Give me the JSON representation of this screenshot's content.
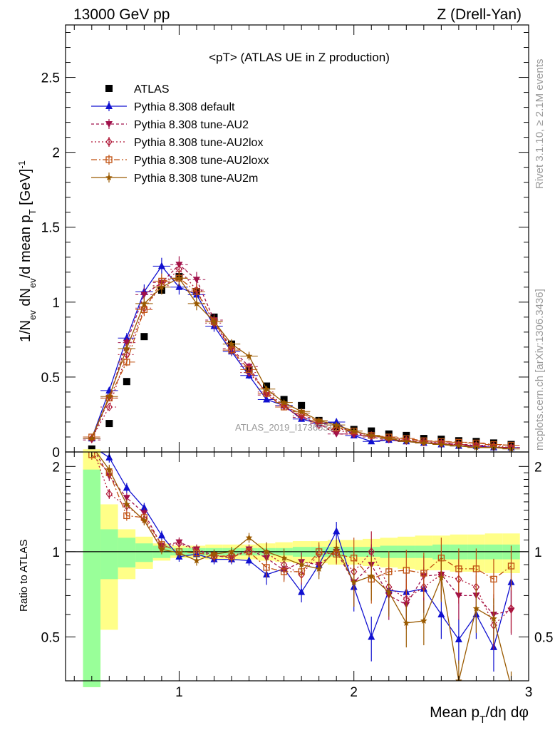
{
  "header": {
    "left": "13000 GeV pp",
    "right": "Z (Drell-Yan)"
  },
  "side": {
    "rivet": "Rivet 3.1.10, ≥ 2.1M events",
    "mcplots": "mcplots.cern.ch [arXiv:1306.3436]"
  },
  "watermark": "ATLAS_2019_I1736531",
  "colors": {
    "data": "#000000",
    "default": "#1010d0",
    "au2": "#a0104a",
    "au2lox": "#b01838",
    "au2loxx": "#c05010",
    "au2m": "#9a5a00",
    "band_green": "#99ff99",
    "band_yellow": "#ffff88"
  },
  "chart_data": [
    {
      "type": "scatter",
      "panel": "main",
      "title": "<pT> (ATLAS UE in Z production)",
      "ylabel": "1/N_ev dN_ev/d mean p_T [GeV]^-1",
      "xlim": [
        0.35,
        3.0
      ],
      "ylim": [
        0,
        2.85
      ],
      "yticks": [
        0,
        0.5,
        1,
        1.5,
        2,
        2.5
      ],
      "ytick_labels": [
        "0",
        "0.5",
        "1",
        "1.5",
        "2",
        "2.5"
      ],
      "x": [
        0.5,
        0.6,
        0.7,
        0.8,
        0.9,
        1.0,
        1.1,
        1.2,
        1.3,
        1.4,
        1.5,
        1.6,
        1.7,
        1.8,
        1.9,
        2.0,
        2.1,
        2.2,
        2.3,
        2.4,
        2.5,
        2.6,
        2.7,
        2.8,
        2.9
      ],
      "legend_position": "top-left",
      "series": [
        {
          "name": "ATLAS",
          "key": "data",
          "marker": "square",
          "values": [
            0.02,
            0.19,
            0.47,
            0.77,
            1.08,
            1.17,
            1.07,
            0.9,
            0.72,
            0.55,
            0.44,
            0.35,
            0.31,
            0.21,
            0.17,
            0.15,
            0.14,
            0.12,
            0.11,
            0.09,
            0.085,
            0.075,
            0.07,
            0.06,
            0.05
          ]
        },
        {
          "name": "Pythia 8.308 default",
          "key": "default",
          "marker": "triangle-up",
          "dash": "",
          "values": [
            0.09,
            0.41,
            0.76,
            1.07,
            1.24,
            1.1,
            1.05,
            0.84,
            0.67,
            0.51,
            0.35,
            0.31,
            0.22,
            0.19,
            0.2,
            0.11,
            0.07,
            0.08,
            0.07,
            0.06,
            0.05,
            0.04,
            0.04,
            0.03,
            0.03
          ]
        },
        {
          "name": "Pythia 8.308 tune-AU2",
          "key": "au2",
          "marker": "triangle-down",
          "dash": "4,3",
          "values": [
            0.08,
            0.36,
            0.73,
            1.05,
            1.13,
            1.25,
            1.15,
            0.88,
            0.69,
            0.57,
            0.38,
            0.3,
            0.23,
            0.19,
            0.12,
            0.12,
            0.1,
            0.08,
            0.07,
            0.06,
            0.06,
            0.05,
            0.04,
            0.03,
            0.03
          ]
        },
        {
          "name": "Pythia 8.308 tune-AU2lox",
          "key": "au2lox",
          "marker": "diamond-open",
          "dash": "2,3",
          "values": [
            0.09,
            0.3,
            0.65,
            0.96,
            1.11,
            1.22,
            1.08,
            0.86,
            0.68,
            0.53,
            0.4,
            0.31,
            0.24,
            0.18,
            0.15,
            0.12,
            0.11,
            0.09,
            0.08,
            0.07,
            0.06,
            0.05,
            0.045,
            0.04,
            0.03
          ]
        },
        {
          "name": "Pythia 8.308 tune-AU2loxx",
          "key": "au2loxx",
          "marker": "square-open",
          "dash": "8,3,2,3",
          "values": [
            0.1,
            0.36,
            0.6,
            0.95,
            1.14,
            1.16,
            1.07,
            0.87,
            0.68,
            0.55,
            0.39,
            0.3,
            0.26,
            0.2,
            0.16,
            0.14,
            0.11,
            0.1,
            0.09,
            0.075,
            0.07,
            0.065,
            0.06,
            0.05,
            0.045
          ]
        },
        {
          "name": "Pythia 8.308 tune-AU2m",
          "key": "au2m",
          "marker": "star",
          "dash": "",
          "values": [
            0.09,
            0.37,
            0.69,
            0.99,
            1.1,
            1.16,
            0.99,
            0.87,
            0.72,
            0.64,
            0.42,
            0.33,
            0.27,
            0.21,
            0.18,
            0.14,
            0.11,
            0.09,
            0.07,
            0.06,
            0.05,
            0.04,
            0.03,
            0.03,
            0.02
          ]
        }
      ]
    },
    {
      "type": "line",
      "panel": "ratio",
      "ylabel": "Ratio to ATLAS",
      "xlabel": "Mean p_T/dη dφ",
      "xlim": [
        0.35,
        3.0
      ],
      "ylim": [
        0.35,
        2.25
      ],
      "yticks": [
        0.5,
        1,
        2
      ],
      "ytick_labels": [
        "0.5",
        "1",
        "2"
      ],
      "xticks": [
        1,
        2,
        3
      ],
      "xtick_labels": [
        "1",
        "2",
        "3"
      ],
      "x": [
        0.5,
        0.6,
        0.7,
        0.8,
        0.9,
        1.0,
        1.1,
        1.2,
        1.3,
        1.4,
        1.5,
        1.6,
        1.7,
        1.8,
        1.9,
        2.0,
        2.1,
        2.2,
        2.3,
        2.4,
        2.5,
        2.6,
        2.7,
        2.8,
        2.9
      ],
      "bands": {
        "green_lo": [
          0.0,
          0.8,
          0.88,
          0.92,
          0.95,
          0.97,
          0.97,
          0.97,
          0.97,
          0.97,
          0.97,
          0.97,
          0.96,
          0.96,
          0.96,
          0.96,
          0.96,
          0.95,
          0.95,
          0.95,
          0.94,
          0.94,
          0.94,
          0.94,
          0.94
        ],
        "green_hi": [
          1.95,
          1.2,
          1.12,
          1.07,
          1.05,
          1.03,
          1.03,
          1.03,
          1.03,
          1.03,
          1.03,
          1.03,
          1.04,
          1.04,
          1.04,
          1.04,
          1.04,
          1.05,
          1.05,
          1.05,
          1.06,
          1.06,
          1.06,
          1.06,
          1.06
        ],
        "yellow_lo": [
          0.0,
          0.53,
          0.8,
          0.87,
          0.93,
          0.95,
          0.95,
          0.94,
          0.94,
          0.94,
          0.93,
          0.92,
          0.91,
          0.91,
          0.9,
          0.9,
          0.89,
          0.88,
          0.87,
          0.86,
          0.86,
          0.85,
          0.85,
          0.84,
          0.84
        ],
        "yellow_hi": [
          2.3,
          1.47,
          1.2,
          1.13,
          1.07,
          1.05,
          1.05,
          1.06,
          1.06,
          1.06,
          1.07,
          1.08,
          1.09,
          1.09,
          1.1,
          1.1,
          1.11,
          1.12,
          1.13,
          1.14,
          1.14,
          1.15,
          1.15,
          1.16,
          1.16
        ]
      },
      "series": [
        {
          "name": "Pythia 8.308 default",
          "key": "default",
          "values": [
            2.6,
            2.15,
            1.68,
            1.43,
            1.14,
            0.96,
            0.98,
            0.94,
            0.94,
            0.93,
            0.83,
            0.87,
            0.72,
            0.9,
            1.18,
            0.75,
            0.5,
            0.73,
            0.72,
            0.74,
            0.6,
            0.49,
            0.6,
            0.46,
            0.78
          ]
        },
        {
          "name": "Pythia 8.308 tune-AU2",
          "key": "au2",
          "values": [
            2.5,
            1.85,
            1.55,
            1.37,
            1.05,
            1.08,
            1.02,
            0.97,
            0.95,
            1.02,
            0.95,
            0.86,
            0.92,
            0.9,
            1.0,
            0.78,
            0.9,
            0.7,
            0.65,
            0.82,
            0.83,
            0.7,
            0.7,
            0.6,
            0.62
          ]
        },
        {
          "name": "Pythia 8.308 tune-AU2lox",
          "key": "au2lox",
          "values": [
            2.45,
            1.6,
            1.45,
            1.3,
            1.03,
            1.07,
            1.01,
            0.96,
            0.97,
            1.0,
            0.99,
            0.9,
            0.83,
            0.98,
            0.99,
            0.85,
            1.0,
            0.75,
            0.68,
            0.75,
            0.83,
            0.8,
            0.75,
            0.55,
            0.63
          ]
        },
        {
          "name": "Pythia 8.308 tune-AU2loxx",
          "key": "au2loxx",
          "values": [
            2.2,
            1.9,
            1.34,
            1.32,
            1.06,
            1.0,
            0.99,
            0.97,
            0.96,
            1.0,
            0.88,
            0.85,
            0.85,
            1.0,
            0.98,
            0.95,
            0.8,
            0.85,
            0.86,
            0.84,
            0.95,
            0.87,
            0.87,
            0.8,
            0.89
          ]
        },
        {
          "name": "Pythia 8.308 tune-AU2m",
          "key": "au2m",
          "values": [
            2.4,
            1.95,
            1.47,
            1.29,
            1.02,
            0.99,
            0.93,
            0.98,
            1.0,
            1.12,
            1.0,
            0.95,
            0.9,
            0.87,
            1.03,
            0.78,
            0.82,
            0.72,
            0.56,
            0.57,
            0.81,
            0.35,
            0.63,
            0.58,
            0.32
          ]
        }
      ]
    }
  ]
}
